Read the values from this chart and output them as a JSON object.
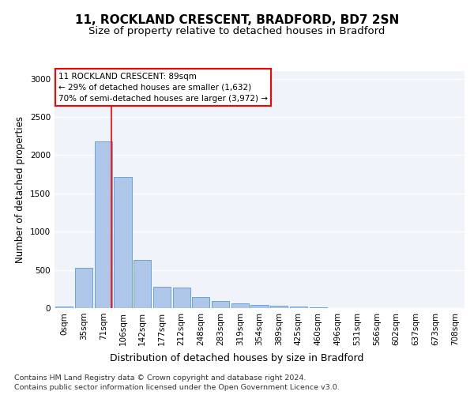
{
  "title1": "11, ROCKLAND CRESCENT, BRADFORD, BD7 2SN",
  "title2": "Size of property relative to detached houses in Bradford",
  "xlabel": "Distribution of detached houses by size in Bradford",
  "ylabel": "Number of detached properties",
  "bar_color": "#aec6e8",
  "bar_edge_color": "#5b9bd5",
  "bg_color": "#f0f4fa",
  "grid_color": "#ffffff",
  "categories": [
    "0sqm",
    "35sqm",
    "71sqm",
    "106sqm",
    "142sqm",
    "177sqm",
    "212sqm",
    "248sqm",
    "283sqm",
    "319sqm",
    "354sqm",
    "389sqm",
    "425sqm",
    "460sqm",
    "496sqm",
    "531sqm",
    "566sqm",
    "602sqm",
    "637sqm",
    "673sqm",
    "708sqm"
  ],
  "values": [
    25,
    525,
    2185,
    1720,
    635,
    275,
    270,
    145,
    95,
    60,
    45,
    30,
    20,
    10,
    5,
    2,
    1,
    0,
    0,
    0,
    0
  ],
  "annotation_text": "11 ROCKLAND CRESCENT: 89sqm\n← 29% of detached houses are smaller (1,632)\n70% of semi-detached houses are larger (3,972) →",
  "footnote1": "Contains HM Land Registry data © Crown copyright and database right 2024.",
  "footnote2": "Contains public sector information licensed under the Open Government Licence v3.0.",
  "ylim": [
    0,
    3100
  ],
  "yticks": [
    0,
    500,
    1000,
    1500,
    2000,
    2500,
    3000
  ],
  "red_line_x": 2.425,
  "title1_fontsize": 11,
  "title2_fontsize": 9.5,
  "xlabel_fontsize": 9,
  "ylabel_fontsize": 8.5,
  "tick_fontsize": 7.5,
  "footnote_fontsize": 6.8,
  "annot_fontsize": 7.5
}
